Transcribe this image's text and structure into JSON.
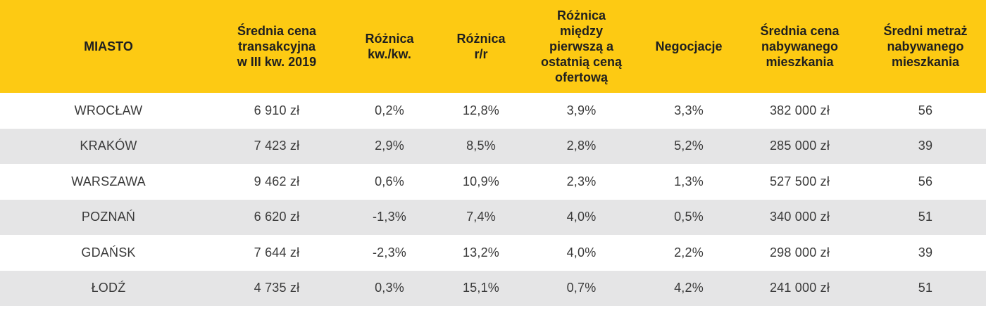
{
  "colors": {
    "header_bg": "#fdca13",
    "row_alt_bg": "#e5e5e6",
    "row_bg": "#ffffff"
  },
  "headers": [
    "MIASTO",
    "Średnia cena\ntransakcyjna\nw III kw. 2019",
    "Różnica\nkw./kw.",
    "Różnica\nr/r",
    "Różnica\nmiędzy\npierwszą a\nostatnią ceną\nofertową",
    "Negocjacje",
    "Średnia cena\nnabywanego\nmieszkania",
    "Średni metraż\nnabywanego\nmieszkania"
  ],
  "rows": [
    [
      "WROCŁAW",
      "6 910 zł",
      "0,2%",
      "12,8%",
      "3,9%",
      "3,3%",
      "382 000 zł",
      "56"
    ],
    [
      "KRAKÓW",
      "7 423 zł",
      "2,9%",
      "8,5%",
      "2,8%",
      "5,2%",
      "285 000 zł",
      "39"
    ],
    [
      "WARSZAWA",
      "9 462 zł",
      "0,6%",
      "10,9%",
      "2,3%",
      "1,3%",
      "527 500 zł",
      "56"
    ],
    [
      "POZNAŃ",
      "6 620 zł",
      "-1,3%",
      "7,4%",
      "4,0%",
      "0,5%",
      "340 000 zł",
      "51"
    ],
    [
      "GDAŃSK",
      "7 644 zł",
      "-2,3%",
      "13,2%",
      "4,0%",
      "2,2%",
      "298 000 zł",
      "39"
    ],
    [
      "ŁODŹ",
      "4 735 zł",
      "0,3%",
      "15,1%",
      "0,7%",
      "4,2%",
      "241 000 zł",
      "51"
    ]
  ]
}
